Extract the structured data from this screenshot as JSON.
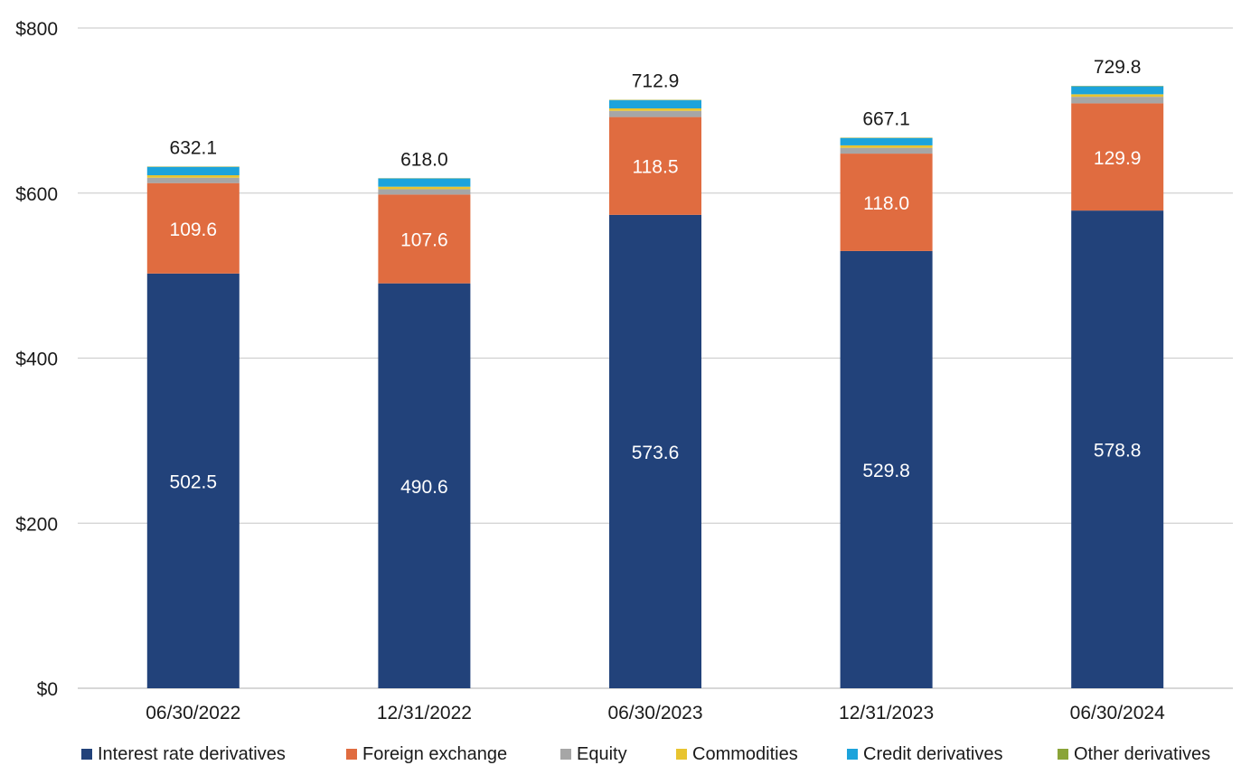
{
  "chart_data": {
    "type": "bar",
    "stacked": true,
    "title": "",
    "xlabel": "",
    "ylabel": "",
    "ylim": [
      0,
      800
    ],
    "yticks": [
      0,
      200,
      400,
      600,
      800
    ],
    "ytick_labels": [
      "$0",
      "$200",
      "$400",
      "$600",
      "$800"
    ],
    "grid": true,
    "legend_position": "bottom",
    "categories": [
      "06/30/2022",
      "12/31/2022",
      "06/30/2023",
      "12/31/2023",
      "06/30/2024"
    ],
    "totals": [
      632.1,
      618.0,
      712.9,
      667.1,
      729.8
    ],
    "total_labels": [
      "632.1",
      "618.0",
      "712.9",
      "667.1",
      "729.8"
    ],
    "series": [
      {
        "name": "Interest rate derivatives",
        "color": "#22427a",
        "values": [
          502.5,
          490.6,
          573.6,
          529.8,
          578.8
        ],
        "labels": [
          "502.5",
          "490.6",
          "573.6",
          "529.8",
          "578.8"
        ]
      },
      {
        "name": "Foreign exchange",
        "color": "#e06c40",
        "values": [
          109.6,
          107.6,
          118.5,
          118.0,
          129.9
        ],
        "labels": [
          "109.6",
          "107.6",
          "118.5",
          "118.0",
          "129.9"
        ]
      },
      {
        "name": "Equity",
        "color": "#a6a6a6",
        "values": [
          6.5,
          6.5,
          7.5,
          7.0,
          8.0
        ]
      },
      {
        "name": "Commodities",
        "color": "#e8c430",
        "values": [
          3.0,
          3.0,
          3.0,
          3.0,
          3.0
        ]
      },
      {
        "name": "Credit derivatives",
        "color": "#1ca3db",
        "values": [
          10.0,
          10.0,
          9.8,
          8.8,
          9.6
        ]
      },
      {
        "name": "Other derivatives",
        "color": "#8aa438",
        "values": [
          0.5,
          0.3,
          0.5,
          0.5,
          0.5
        ]
      }
    ]
  }
}
